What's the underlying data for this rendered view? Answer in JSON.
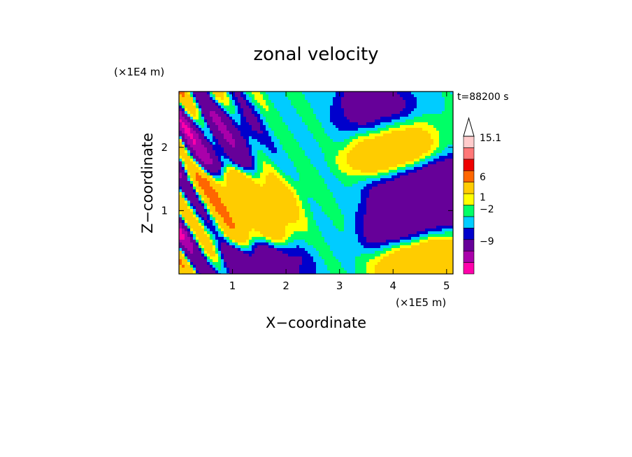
{
  "chart_data": {
    "type": "heatmap",
    "title": "zonal velocity",
    "xlabel": "X−coordinate",
    "ylabel": "Z−coordinate",
    "x_unit": "(×1E5 m)",
    "y_unit": "(×1E4 m)",
    "time_label": "t=88200 s",
    "xlim": [
      0,
      5.12
    ],
    "ylim": [
      0,
      2.88
    ],
    "x_ticks": [
      1,
      2,
      3,
      4,
      5
    ],
    "y_ticks": [
      1,
      2
    ],
    "colorbar": {
      "levels": [
        -12,
        -9,
        -6,
        -2,
        -1,
        0,
        1,
        2,
        6,
        9,
        12,
        15.1
      ],
      "labels": [
        "15.1",
        "6",
        "1",
        "−2",
        "−9"
      ],
      "colors": [
        "#ff00aa",
        "#aa00aa",
        "#660099",
        "#0000cc",
        "#00ccff",
        "#00ff66",
        "#ffff00",
        "#ffcc00",
        "#ff6600",
        "#ee0000",
        "#ff7777",
        "#ffcccc"
      ]
    },
    "field_features": [
      {
        "x": 1.2,
        "z": 1.0,
        "u": 5
      },
      {
        "x": 1.6,
        "z": 0.9,
        "u": 4
      },
      {
        "x": 2.8,
        "z": 0.9,
        "u": 0
      },
      {
        "x": 4.3,
        "z": 1.3,
        "u": -4
      },
      {
        "x": 4.1,
        "z": 0.8,
        "u": -5
      },
      {
        "x": 5.0,
        "z": 1.3,
        "u": -5
      },
      {
        "x": 3.6,
        "z": 2.5,
        "u": -4
      },
      {
        "x": 3.9,
        "z": 2.0,
        "u": 6
      },
      {
        "x": 0.4,
        "z": 1.1,
        "u": 10
      },
      {
        "x": 0.1,
        "z": 1.0,
        "u": -10
      },
      {
        "x": 0.6,
        "z": 2.1,
        "u": -5
      },
      {
        "x": 1.5,
        "z": 0.1,
        "u": -5
      },
      {
        "x": 4.5,
        "z": 0.2,
        "u": 6
      },
      {
        "x": 2.4,
        "z": 2.3,
        "u": 0
      }
    ]
  }
}
